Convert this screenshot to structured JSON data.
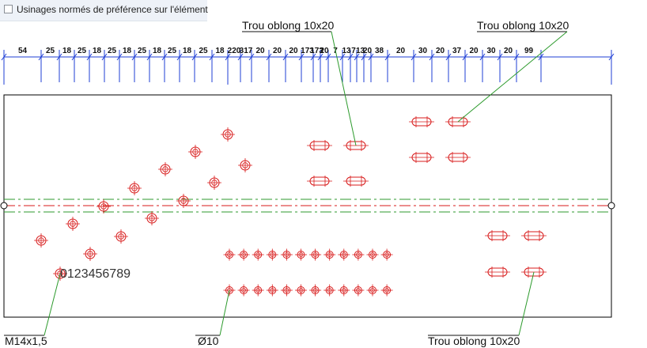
{
  "option": {
    "label": "Usinages normés de préférence sur l'élément",
    "checked": false
  },
  "dimensions": [
    "54",
    "25",
    "18",
    "25",
    "18",
    "25",
    "18",
    "25",
    "18",
    "25",
    "18",
    "25",
    "18",
    "220",
    "317",
    "20",
    "20",
    "20",
    "173",
    "173",
    "20",
    "7",
    "13",
    "7",
    "13",
    "20",
    "38",
    "20",
    "30",
    "20",
    "37",
    "20",
    "30",
    "20",
    "99"
  ],
  "callouts": [
    {
      "text": "Trou oblong 10x20"
    },
    {
      "text": "Trou oblong 10x20"
    },
    {
      "text": "M14x1,5"
    },
    {
      "text": "Ø10"
    },
    {
      "text": "Trou oblong 10x20"
    }
  ],
  "engraving": "0123456789",
  "colors": {
    "dimension": "#1f3fd6",
    "hole": "#d81b1b",
    "leader": "#2c9a2c",
    "axis_green": "#2c9a2c",
    "axis_red": "#d81b1b",
    "outline": "#000000"
  }
}
